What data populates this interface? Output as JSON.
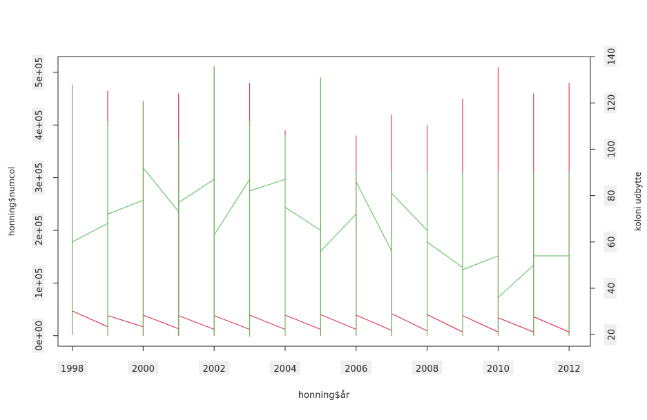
{
  "chart_data": {
    "type": "line",
    "title": "",
    "xlabel": "honning$år",
    "ylabel": "honning$numcol",
    "y2label": "koloni udbytte",
    "x_ticks": [
      1998,
      2000,
      2002,
      2004,
      2006,
      2008,
      2010,
      2012
    ],
    "y_ticks": [
      0,
      100000,
      200000,
      300000,
      400000,
      500000
    ],
    "y_tick_labels": [
      "0e+00",
      "1e+05",
      "2e+05",
      "3e+05",
      "4e+05",
      "5e+05"
    ],
    "y2_ticks": [
      20,
      40,
      60,
      80,
      100,
      120,
      140
    ],
    "xlim": [
      1997.6,
      2012.6
    ],
    "ylim": [
      -20000,
      530000
    ],
    "y2lim": [
      15,
      140
    ],
    "years": [
      1998,
      1999,
      2000,
      2001,
      2002,
      2003,
      2004,
      2005,
      2006,
      2007,
      2008,
      2009,
      2010,
      2011,
      2012
    ],
    "series": [
      {
        "axis": "left",
        "color": "#dc143c",
        "start": [
          47000,
          38000,
          39000,
          38000,
          38000,
          39000,
          39000,
          40000,
          39000,
          42000,
          40000,
          38000,
          34000,
          36000,
          34000
        ],
        "end": [
          17000,
          17000,
          13000,
          12000,
          12000,
          12000,
          12000,
          12000,
          10000,
          9000,
          7000,
          7000,
          7000,
          7000,
          7000
        ],
        "min": [
          1000,
          0,
          0,
          0,
          0,
          0,
          0,
          0,
          0,
          0,
          0,
          0,
          0,
          0,
          0
        ],
        "max": [
          475000,
          465000,
          445000,
          460000,
          510000,
          480000,
          390000,
          490000,
          380000,
          420000,
          400000,
          450000,
          510000,
          460000,
          480000
        ]
      },
      {
        "axis": "right",
        "color": "#4dbd4d",
        "start": [
          60,
          72,
          92,
          77,
          63,
          82,
          75,
          56,
          86,
          81,
          60,
          48,
          36,
          54,
          54
        ],
        "end": [
          68,
          78,
          73,
          87,
          87,
          87,
          65,
          72,
          56,
          65,
          49,
          54,
          50,
          54,
          54
        ],
        "min": [
          20,
          20,
          20,
          20,
          20,
          19,
          20,
          20,
          20,
          20,
          20,
          20,
          20,
          20,
          20
        ],
        "max": [
          128,
          112,
          121,
          104,
          136,
          112,
          106,
          131,
          90,
          90,
          90,
          90,
          90,
          90,
          90
        ]
      }
    ],
    "grid": false,
    "legend": "none"
  }
}
